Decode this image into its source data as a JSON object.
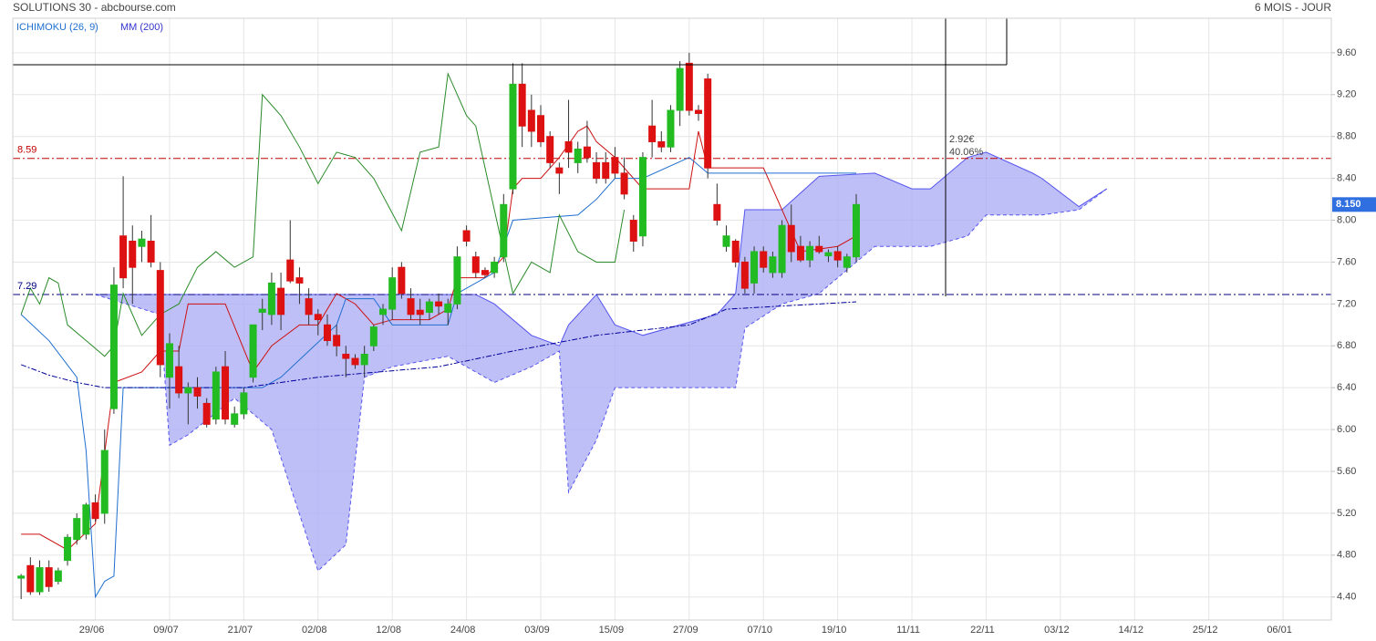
{
  "chart_data": {
    "type": "candlestick",
    "title": "SOLUTIONS 30 - abcbourse.com",
    "period": "6 MOIS - JOUR",
    "legend": [
      "ICHIMOKU (26, 9)",
      "MM (200)"
    ],
    "up_color": "#22bb22",
    "down_color": "#dd1111",
    "grid": true,
    "xlim": [
      -0.9,
      141.2
    ],
    "ylim": [
      4.18,
      9.93
    ],
    "xticks": [
      {
        "value": 8,
        "label": "29/06"
      },
      {
        "value": 16,
        "label": "09/07"
      },
      {
        "value": 24,
        "label": "21/07"
      },
      {
        "value": 32,
        "label": "02/08"
      },
      {
        "value": 40,
        "label": "12/08"
      },
      {
        "value": 48,
        "label": "24/08"
      },
      {
        "value": 56,
        "label": "03/09"
      },
      {
        "value": 64,
        "label": "15/09"
      },
      {
        "value": 72,
        "label": "27/09"
      },
      {
        "value": 80,
        "label": "07/10"
      },
      {
        "value": 88,
        "label": "19/10"
      },
      {
        "value": 96,
        "label": "11/11"
      },
      {
        "value": 104,
        "label": "22/11"
      },
      {
        "value": 112,
        "label": "03/12"
      },
      {
        "value": 120,
        "label": "14/12"
      },
      {
        "value": 128,
        "label": "25/12"
      },
      {
        "value": 136,
        "label": "06/01"
      }
    ],
    "yticks": [
      {
        "value": 4.4,
        "label": "4.40"
      },
      {
        "value": 4.8,
        "label": "4.80"
      },
      {
        "value": 5.2,
        "label": "5.20"
      },
      {
        "value": 5.6,
        "label": "5.60"
      },
      {
        "value": 6.0,
        "label": "6.00"
      },
      {
        "value": 6.4,
        "label": "6.40"
      },
      {
        "value": 6.8,
        "label": "6.80"
      },
      {
        "value": 7.2,
        "label": "7.20"
      },
      {
        "value": 7.6,
        "label": "7.60"
      },
      {
        "value": 8.0,
        "label": "8.00"
      },
      {
        "value": 8.4,
        "label": "8.40"
      },
      {
        "value": 8.8,
        "label": "8.80"
      },
      {
        "value": 9.2,
        "label": "9.20"
      },
      {
        "value": 9.6,
        "label": "9.60"
      }
    ],
    "open": [
      4.58,
      4.7,
      4.45,
      4.68,
      4.55,
      4.75,
      4.95,
      5.0,
      5.3,
      5.2,
      6.2,
      7.85,
      7.8,
      7.75,
      7.8,
      7.52,
      6.5,
      6.6,
      6.35,
      6.4,
      6.25,
      6.1,
      6.6,
      6.05,
      6.15,
      6.5,
      7.12,
      7.1,
      7.35,
      7.62,
      7.45,
      7.25,
      7.1,
      7.0,
      6.9,
      6.72,
      6.68,
      6.62,
      6.8,
      7.1,
      7.15,
      7.55,
      7.25,
      7.14,
      7.12,
      7.22,
      7.12,
      7.2,
      7.9,
      7.65,
      7.52,
      7.5,
      7.65,
      8.3,
      9.3,
      9.05,
      9.0,
      8.8,
      8.5,
      8.75,
      8.55,
      8.7,
      8.55,
      8.55,
      8.6,
      8.45,
      8.0,
      7.85,
      8.9,
      8.75,
      8.7,
      9.05,
      9.5,
      9.05,
      9.35,
      8.15,
      7.75,
      7.8,
      7.6,
      7.4,
      7.7,
      7.5,
      7.5,
      7.95,
      7.75,
      7.62,
      7.75,
      7.66,
      7.7,
      7.55,
      7.65
    ],
    "high": [
      4.62,
      4.78,
      4.75,
      4.75,
      4.68,
      5.0,
      5.2,
      5.3,
      5.38,
      6.0,
      7.55,
      8.42,
      7.95,
      7.9,
      8.05,
      7.6,
      6.92,
      6.8,
      6.45,
      6.5,
      6.3,
      6.6,
      6.75,
      6.22,
      6.4,
      7.0,
      7.25,
      7.5,
      7.5,
      8.0,
      7.55,
      7.35,
      7.15,
      7.1,
      7.0,
      6.8,
      6.72,
      6.8,
      7.0,
      7.2,
      7.55,
      7.6,
      7.35,
      7.25,
      7.25,
      7.3,
      7.25,
      7.75,
      7.95,
      7.7,
      7.55,
      7.65,
      8.25,
      9.5,
      9.5,
      9.2,
      9.1,
      8.85,
      8.55,
      9.15,
      8.75,
      8.95,
      8.65,
      8.65,
      8.7,
      8.6,
      8.05,
      8.65,
      9.15,
      8.85,
      9.1,
      9.52,
      9.6,
      9.1,
      9.4,
      8.35,
      7.95,
      7.82,
      7.65,
      7.75,
      7.75,
      7.7,
      8.0,
      8.15,
      7.85,
      7.8,
      7.85,
      7.72,
      7.75,
      7.68,
      8.25
    ],
    "low": [
      4.38,
      4.42,
      4.42,
      4.45,
      4.52,
      4.7,
      4.9,
      4.95,
      5.12,
      5.1,
      6.15,
      7.35,
      7.2,
      7.6,
      7.55,
      6.5,
      6.2,
      6.3,
      6.05,
      6.2,
      6.02,
      6.05,
      6.05,
      6.02,
      6.1,
      6.45,
      6.95,
      7.0,
      6.95,
      7.4,
      7.2,
      7.0,
      6.9,
      6.8,
      6.7,
      6.5,
      6.58,
      6.5,
      6.75,
      7.0,
      7.05,
      7.25,
      7.05,
      7.0,
      7.05,
      7.1,
      7.0,
      7.15,
      7.75,
      7.45,
      7.45,
      7.45,
      7.6,
      8.25,
      8.7,
      8.7,
      8.7,
      8.5,
      8.25,
      8.5,
      8.45,
      8.55,
      8.35,
      8.35,
      8.4,
      8.2,
      7.7,
      7.75,
      8.6,
      8.65,
      8.65,
      8.9,
      9.0,
      8.95,
      8.4,
      7.95,
      7.7,
      7.55,
      7.3,
      7.3,
      7.5,
      7.45,
      7.45,
      7.6,
      7.6,
      7.55,
      7.68,
      7.6,
      7.55,
      7.5,
      7.6
    ],
    "close": [
      4.6,
      4.45,
      4.68,
      4.5,
      4.65,
      4.97,
      5.15,
      5.28,
      5.15,
      5.8,
      7.38,
      7.45,
      7.55,
      7.82,
      7.6,
      6.62,
      6.82,
      6.35,
      6.4,
      6.32,
      6.05,
      6.55,
      6.1,
      6.15,
      6.35,
      7.0,
      7.15,
      7.4,
      7.1,
      7.42,
      7.4,
      7.1,
      7.05,
      6.85,
      6.8,
      6.68,
      6.62,
      6.72,
      6.98,
      7.15,
      7.45,
      7.3,
      7.1,
      7.1,
      7.22,
      7.18,
      7.2,
      7.65,
      7.8,
      7.5,
      7.48,
      7.6,
      8.15,
      9.3,
      8.9,
      8.85,
      8.75,
      8.55,
      8.45,
      8.65,
      8.68,
      8.6,
      8.4,
      8.4,
      8.45,
      8.25,
      7.8,
      8.6,
      8.75,
      8.7,
      9.05,
      9.45,
      9.05,
      9.02,
      8.5,
      8.0,
      7.85,
      7.6,
      7.35,
      7.7,
      7.55,
      7.65,
      7.95,
      7.7,
      7.62,
      7.75,
      7.7,
      7.69,
      7.62,
      7.65,
      8.15
    ],
    "last_price": {
      "value": 8.15,
      "label": "8.150",
      "color": "#2f6fe0"
    },
    "hlines": [
      {
        "value": 8.59,
        "color": "#c00000"
      },
      {
        "value": 7.29,
        "color": "#000080"
      }
    ],
    "lines": [
      {
        "color": "#cc1111",
        "dash": false,
        "x": [
          0,
          2,
          5,
          8,
          10,
          13,
          15,
          17,
          18,
          22,
          25,
          27,
          30,
          32,
          34,
          36,
          38,
          40,
          44,
          46,
          47,
          50,
          52,
          53,
          54,
          56,
          58,
          60,
          61,
          62,
          64,
          67,
          72,
          73,
          74,
          76,
          80,
          82,
          84,
          88,
          90
        ],
        "values": [
          5.0,
          5.0,
          4.85,
          5.1,
          6.45,
          6.55,
          6.75,
          6.75,
          7.2,
          7.2,
          6.55,
          6.8,
          7.0,
          7.0,
          7.3,
          7.2,
          7.0,
          7.05,
          7.05,
          7.15,
          7.45,
          7.45,
          7.65,
          8.3,
          8.4,
          8.4,
          8.6,
          8.85,
          8.9,
          8.75,
          8.6,
          8.3,
          8.3,
          8.85,
          8.5,
          8.5,
          8.5,
          8.1,
          7.7,
          7.75,
          7.85
        ]
      },
      {
        "color": "#1f6fd0",
        "dash": false,
        "x": [
          0,
          3,
          6,
          7,
          8,
          9,
          10,
          11,
          26,
          28,
          34,
          35,
          38,
          40,
          46,
          47,
          51,
          53,
          60,
          62,
          64,
          67,
          72,
          74,
          80,
          90
        ],
        "values": [
          7.1,
          6.85,
          6.5,
          5.8,
          4.4,
          4.55,
          4.6,
          6.4,
          6.4,
          6.5,
          7.0,
          7.25,
          7.25,
          7.0,
          7.0,
          7.3,
          7.5,
          8.0,
          8.05,
          8.2,
          8.4,
          8.4,
          8.6,
          8.45,
          8.45,
          8.45
        ]
      },
      {
        "color": "#2a8a2a",
        "dash": false,
        "x": [
          0,
          1,
          2,
          3,
          4,
          5,
          7,
          9,
          10,
          11,
          13,
          15,
          17,
          19,
          21,
          23,
          25,
          26,
          28,
          30,
          32,
          34,
          36,
          38,
          41,
          43,
          45,
          46,
          48,
          49,
          53,
          55,
          57,
          58,
          60,
          62,
          64,
          65
        ],
        "values": [
          7.1,
          7.35,
          7.2,
          7.45,
          7.4,
          7.0,
          6.85,
          6.7,
          6.8,
          7.3,
          6.9,
          7.1,
          7.2,
          7.55,
          7.7,
          7.55,
          7.65,
          9.2,
          9.0,
          8.7,
          8.35,
          8.65,
          8.6,
          8.4,
          7.9,
          8.65,
          8.7,
          9.4,
          9.0,
          8.9,
          7.3,
          7.6,
          7.5,
          8.05,
          7.7,
          7.6,
          7.6,
          8.1
        ]
      },
      {
        "color": "#000099",
        "dash": true,
        "x": [
          0,
          3,
          6,
          9,
          12,
          24,
          32,
          45,
          53,
          62,
          72,
          76,
          86,
          90
        ],
        "values": [
          6.62,
          6.52,
          6.45,
          6.4,
          6.4,
          6.4,
          6.5,
          6.6,
          6.75,
          6.9,
          7.0,
          7.15,
          7.2,
          7.22
        ]
      }
    ],
    "cloud": {
      "color": "#aaaaf5",
      "edge": "#5555ee",
      "x": [
        8,
        15,
        16,
        18,
        23,
        27,
        32,
        35,
        37,
        40,
        46,
        49,
        51,
        55,
        58,
        59,
        62,
        64,
        67,
        75,
        77,
        78,
        82,
        86,
        92,
        96,
        98,
        102,
        104,
        109,
        110,
        114,
        117
      ],
      "top": [
        7.29,
        7.29,
        7.29,
        7.29,
        7.29,
        7.29,
        7.29,
        7.29,
        7.29,
        7.29,
        7.29,
        7.29,
        7.2,
        6.9,
        6.8,
        7.0,
        7.29,
        7.0,
        6.9,
        7.1,
        7.3,
        8.1,
        8.1,
        8.42,
        8.45,
        8.3,
        8.3,
        8.6,
        8.65,
        8.45,
        8.4,
        8.13,
        8.3
      ],
      "bottom": [
        7.29,
        7.1,
        5.85,
        5.95,
        6.3,
        6.0,
        4.65,
        4.9,
        6.5,
        6.6,
        6.7,
        6.55,
        6.45,
        6.6,
        6.75,
        5.4,
        5.9,
        6.4,
        6.4,
        6.4,
        6.4,
        6.97,
        7.2,
        7.3,
        7.75,
        7.75,
        7.75,
        7.85,
        8.05,
        8.05,
        8.05,
        8.1,
        8.3
      ]
    },
    "measure": {
      "change": "2.92€",
      "percent": "40.06%"
    }
  }
}
